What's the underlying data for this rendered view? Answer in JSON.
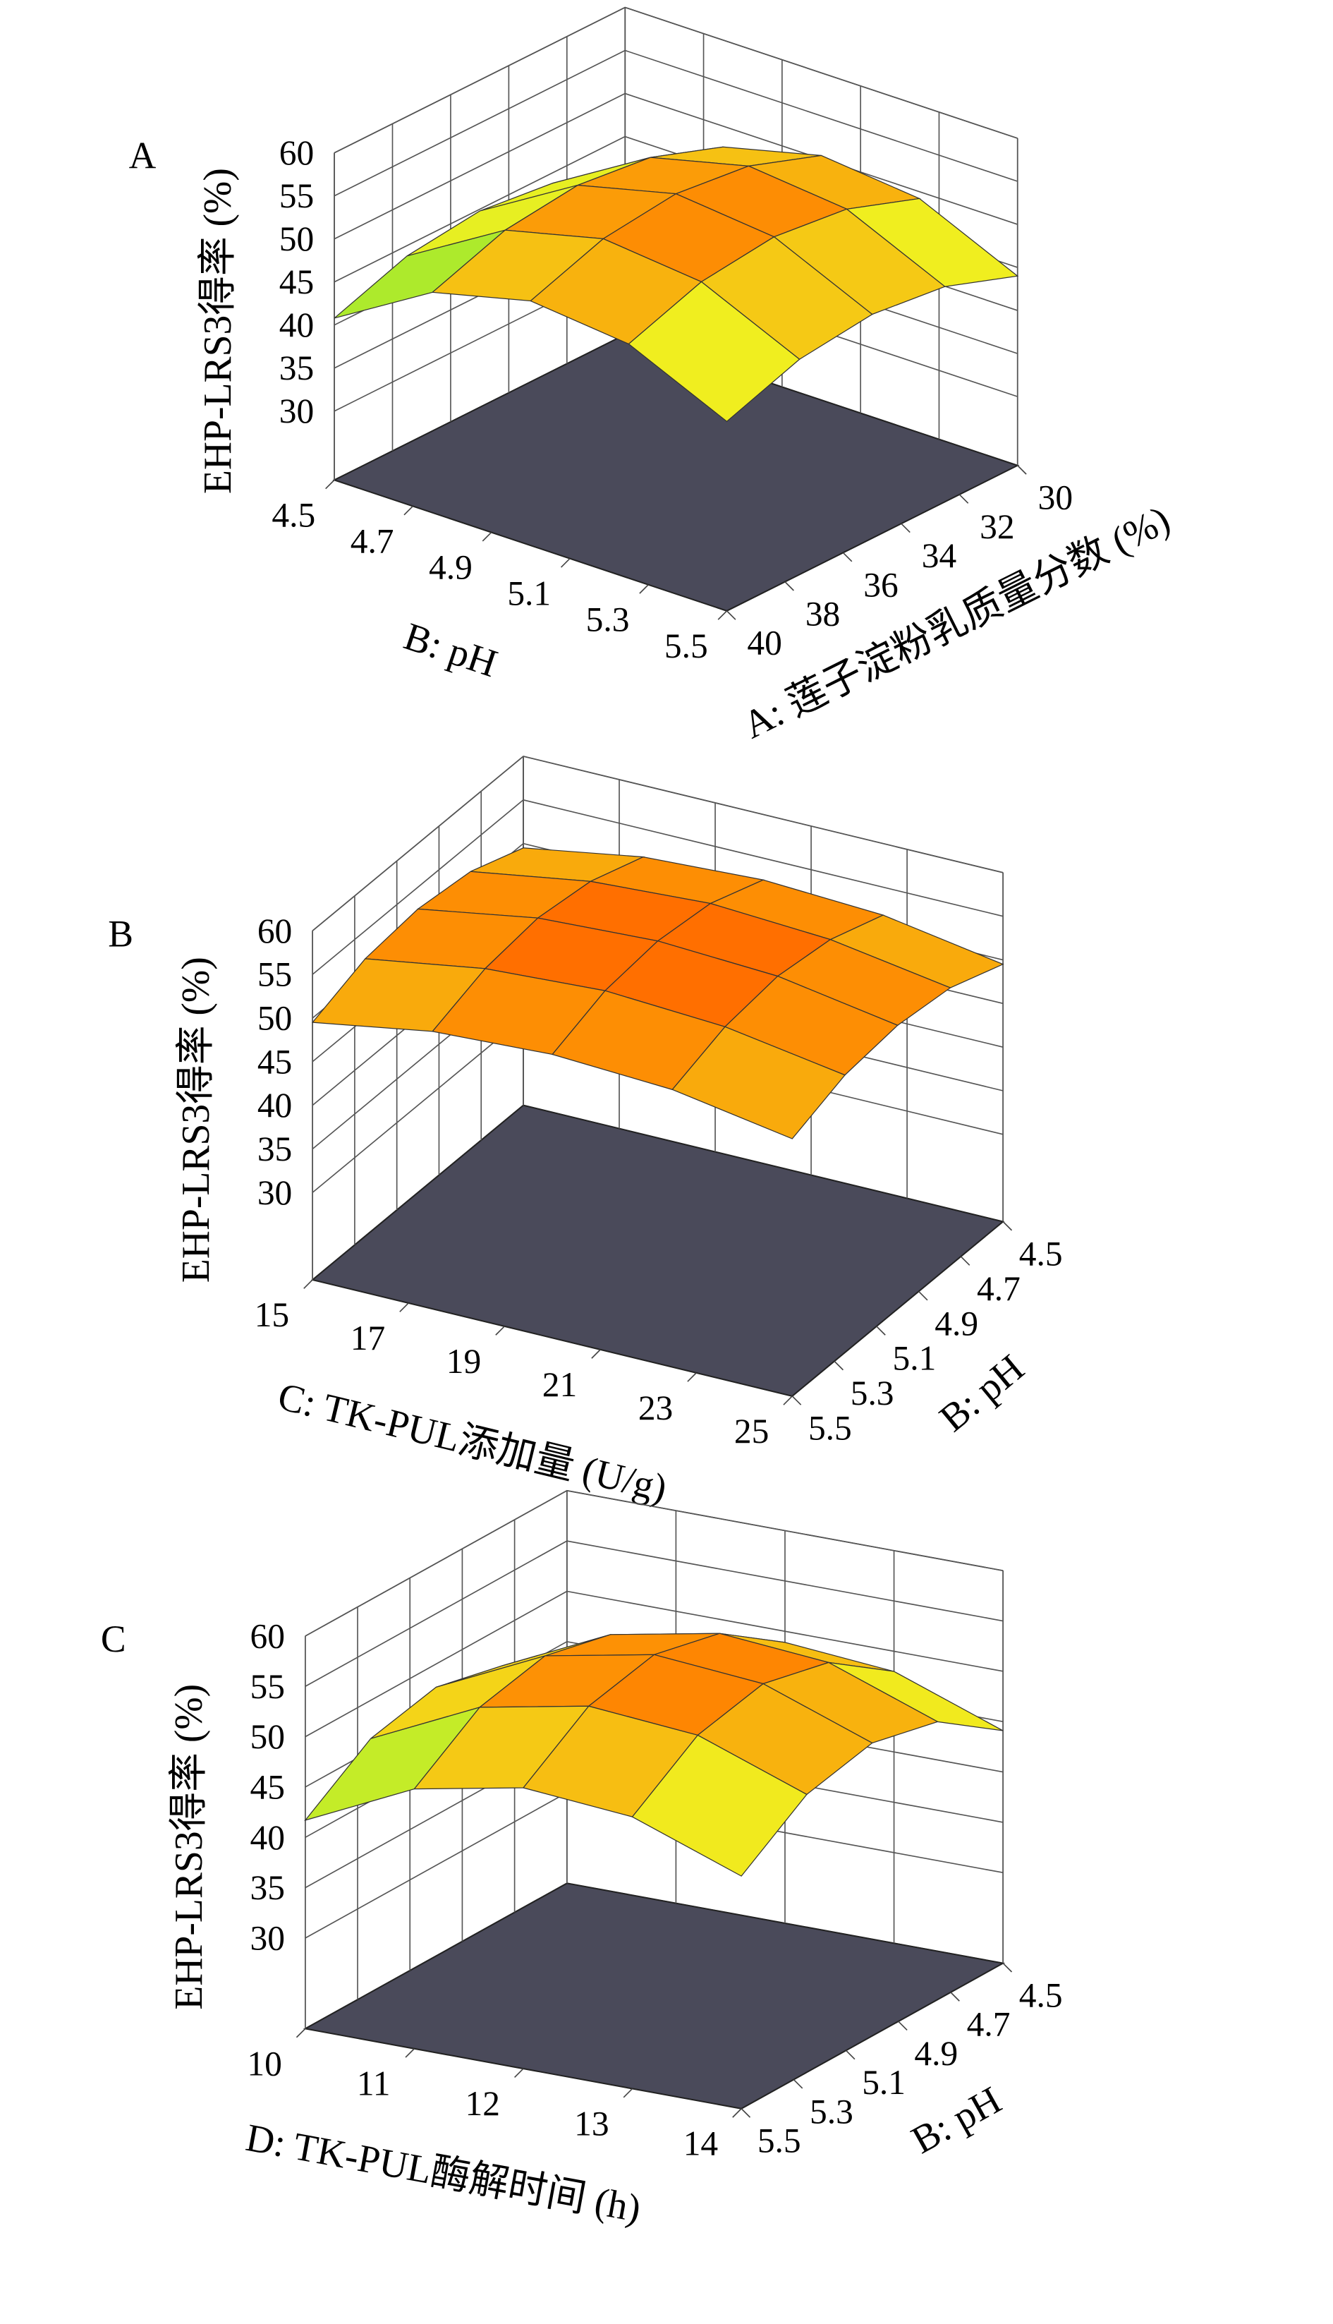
{
  "chart_data": [
    {
      "type": "surface",
      "panel": "A",
      "zlabel": "EHP-LRS3得率 (%)",
      "xlabel": "B: pH",
      "xlim": [
        4.5,
        5.5
      ],
      "xticks": [
        4.5,
        4.7,
        4.9,
        5.1,
        5.3,
        5.5
      ],
      "ylabel": "A: 莲子淀粉乳质量分数 (%)",
      "ylim": [
        40,
        30
      ],
      "yticks": [
        40,
        38,
        36,
        34,
        32,
        30
      ],
      "zlim": [
        22,
        60
      ],
      "zticks": [
        30,
        35,
        40,
        45,
        50,
        55,
        60
      ],
      "grid": true,
      "floor_color": "#4a4a5a",
      "colormap": [
        "#0000ff",
        "#00e0ff",
        "#40e040",
        "#f0f020",
        "#ff8000",
        "#ff0000"
      ],
      "surface": {
        "x": [
          4.5,
          4.75,
          5.0,
          5.25,
          5.5
        ],
        "y": [
          40,
          37.5,
          35,
          32.5,
          30
        ],
        "z": [
          [
            40.8,
            43.8,
            44.8,
            43.8,
            40.8
          ],
          [
            47.6,
            50.6,
            51.6,
            50.6,
            47.6
          ],
          [
            50.4,
            53.4,
            54.4,
            53.4,
            50.4
          ],
          [
            49.2,
            52.2,
            53.2,
            52.2,
            49.2
          ],
          [
            44.0,
            47.0,
            48.0,
            47.0,
            44.0
          ]
        ]
      }
    },
    {
      "type": "surface",
      "panel": "B",
      "zlabel": "EHP-LRS3得率 (%)",
      "xlabel": "C: TK-PUL添加量 (U/g)",
      "xlim": [
        15,
        25
      ],
      "xticks": [
        15,
        17,
        19,
        21,
        23,
        25
      ],
      "ylabel": "B: pH",
      "ylim": [
        5.5,
        4.5
      ],
      "yticks": [
        5.5,
        5.3,
        5.1,
        4.9,
        4.7,
        4.5
      ],
      "zlim": [
        20,
        60
      ],
      "zticks": [
        30,
        35,
        40,
        45,
        50,
        55,
        60
      ],
      "grid": true,
      "floor_color": "#4a4a5a",
      "colormap": [
        "#0000ff",
        "#00e0ff",
        "#40e040",
        "#f0f020",
        "#ff8000",
        "#ff0000"
      ],
      "surface": {
        "x": [
          15,
          17.5,
          20,
          22.5,
          25
        ],
        "y": [
          5.5,
          5.25,
          5.0,
          4.75,
          4.5
        ],
        "z": [
          [
            49.5,
            51.8,
            52.5,
            51.8,
            49.5
          ],
          [
            51.8,
            54.0,
            54.8,
            54.0,
            51.8
          ],
          [
            52.5,
            54.8,
            55.5,
            54.8,
            52.5
          ],
          [
            51.8,
            54.0,
            54.8,
            54.0,
            51.8
          ],
          [
            49.5,
            51.8,
            52.5,
            51.8,
            49.5
          ]
        ]
      }
    },
    {
      "type": "surface",
      "panel": "C",
      "zlabel": "EHP-LRS3得率 (%)",
      "xlabel": "D: TK-PUL酶解时间 (h)",
      "xlim": [
        10,
        14
      ],
      "xticks": [
        10,
        11,
        12,
        13,
        14
      ],
      "ylabel": "B: pH",
      "ylim": [
        5.5,
        4.5
      ],
      "yticks": [
        5.5,
        5.3,
        5.1,
        4.9,
        4.7,
        4.5
      ],
      "zlim": [
        21,
        60
      ],
      "zticks": [
        30,
        35,
        40,
        45,
        50,
        55,
        60
      ],
      "grid": true,
      "floor_color": "#4a4a5a",
      "colormap": [
        "#0000ff",
        "#00e0ff",
        "#40e040",
        "#f0f020",
        "#ff8000",
        "#ff0000"
      ],
      "surface": {
        "x": [
          10,
          11,
          12,
          13,
          14
        ],
        "y": [
          5.5,
          5.25,
          5.0,
          4.75,
          4.5
        ],
        "z": [
          [
            41.7,
            46.2,
            47.7,
            46.2,
            41.7
          ],
          [
            46.8,
            51.3,
            52.8,
            51.3,
            46.8
          ],
          [
            48.9,
            53.4,
            54.9,
            53.4,
            48.9
          ],
          [
            48.0,
            52.5,
            54.0,
            52.5,
            48.0
          ],
          [
            44.1,
            48.6,
            50.1,
            48.6,
            44.1
          ]
        ]
      }
    }
  ]
}
